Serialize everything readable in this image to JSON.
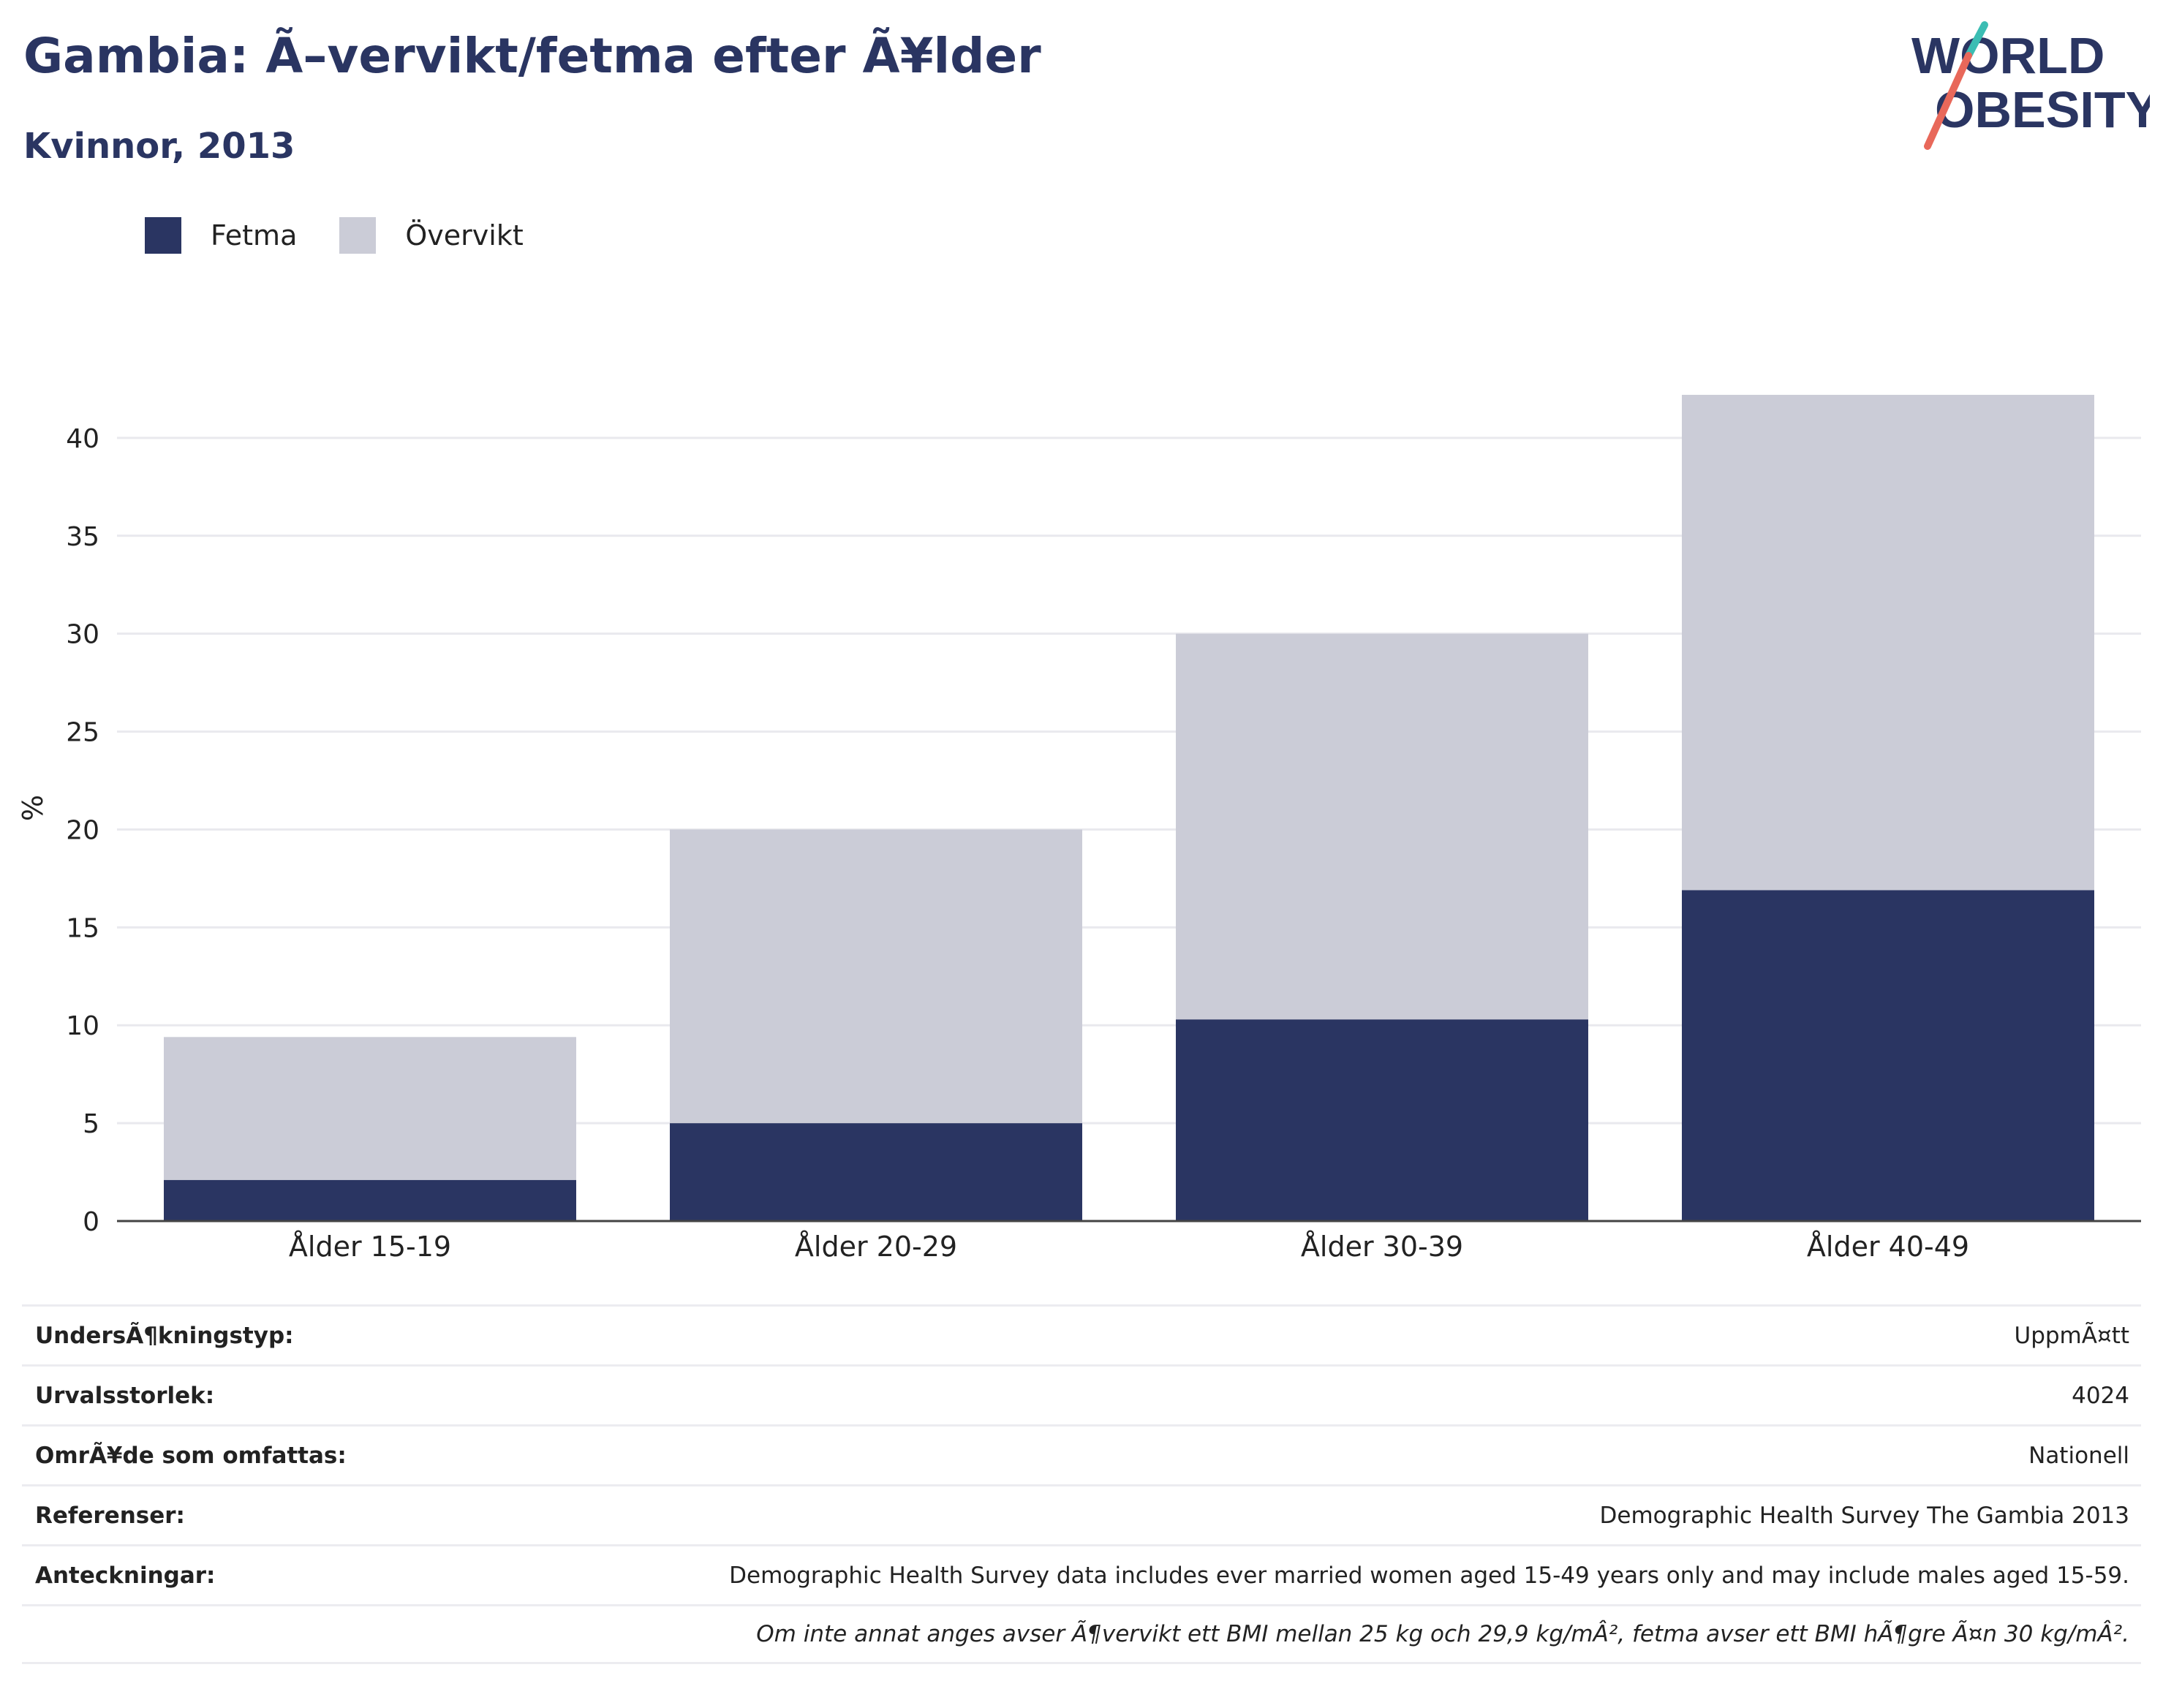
{
  "header": {
    "title": "Gambia: Ã–vervikt/fetma efter Ã¥lder",
    "subtitle": "Kvinnor, 2013"
  },
  "logo": {
    "line1": "WORLD",
    "line2": "OBESITY",
    "colors": {
      "text": "#2a3562",
      "slash_top": "#3bbdb3",
      "slash_bottom": "#e8685a"
    }
  },
  "legend": [
    {
      "label": "Fetma",
      "color": "#2a3562"
    },
    {
      "label": "Övervikt",
      "color": "#cbccd7"
    }
  ],
  "chart_data": {
    "type": "bar",
    "stacked": true,
    "categories": [
      "Ålder 15-19",
      "Ålder 20-29",
      "Ålder 30-39",
      "Ålder 40-49"
    ],
    "series": [
      {
        "name": "Fetma",
        "color": "#2a3562",
        "values": [
          2.1,
          5.0,
          10.3,
          16.9
        ]
      },
      {
        "name": "Övervikt",
        "color": "#cbccd7",
        "values": [
          7.3,
          15.0,
          19.7,
          25.3
        ]
      }
    ],
    "ylabel": "%",
    "ylim": [
      0,
      42.2
    ],
    "yticks": [
      0,
      5,
      10,
      15,
      20,
      25,
      30,
      35,
      40
    ],
    "grid": true,
    "legend_position": "top-left"
  },
  "info": {
    "rows": [
      {
        "label": "UndersÃ¶kningstyp:",
        "value": "UppmÃ¤tt"
      },
      {
        "label": "Urvalsstorlek:",
        "value": "4024"
      },
      {
        "label": "OmrÃ¥de som omfattas:",
        "value": "Nationell"
      },
      {
        "label": "Referenser:",
        "value": "Demographic Health Survey The Gambia 2013"
      },
      {
        "label": "Anteckningar:",
        "value": "Demographic Health Survey data includes ever married women aged 15-49 years only and may include males aged 15-59."
      }
    ],
    "note": "Om inte annat anges avser Ã¶vervikt ett BMI mellan 25 kg och 29,9 kg/mÂ², fetma avser ett BMI hÃ¶gre Ã¤n 30 kg/mÂ²."
  }
}
